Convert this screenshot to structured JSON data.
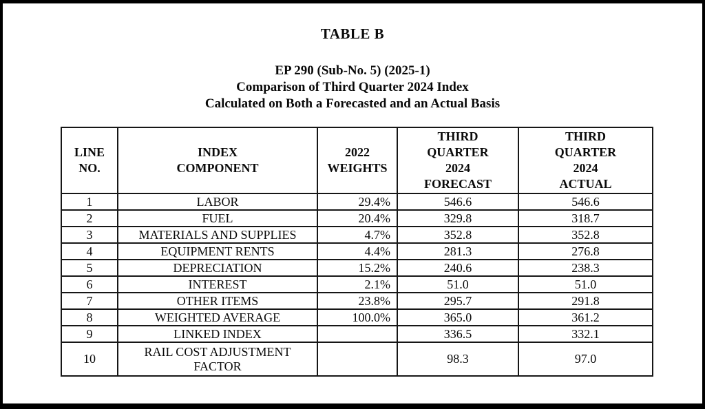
{
  "doc": {
    "title": "TABLE B",
    "subtitle_line1": "EP 290 (Sub-No. 5) (2025-1)",
    "subtitle_line2": "Comparison of Third Quarter 2024 Index",
    "subtitle_line3": "Calculated on Both a Forecasted and an Actual Basis"
  },
  "table": {
    "headers": {
      "line_no": "LINE\nNO.",
      "component": "INDEX\nCOMPONENT",
      "weights": "2022\nWEIGHTS",
      "forecast": "THIRD\nQUARTER\n2024\nFORECAST",
      "actual": "THIRD\nQUARTER\n2024\nACTUAL"
    },
    "rows": [
      {
        "line_no": "1",
        "component": "LABOR",
        "weight": "29.4%",
        "forecast": "546.6",
        "actual": "546.6"
      },
      {
        "line_no": "2",
        "component": "FUEL",
        "weight": "20.4%",
        "forecast": "329.8",
        "actual": "318.7"
      },
      {
        "line_no": "3",
        "component": "MATERIALS AND SUPPLIES",
        "weight": "4.7%",
        "forecast": "352.8",
        "actual": "352.8"
      },
      {
        "line_no": "4",
        "component": "EQUIPMENT RENTS",
        "weight": "4.4%",
        "forecast": "281.3",
        "actual": "276.8"
      },
      {
        "line_no": "5",
        "component": "DEPRECIATION",
        "weight": "15.2%",
        "forecast": "240.6",
        "actual": "238.3"
      },
      {
        "line_no": "6",
        "component": "INTEREST",
        "weight": "2.1%",
        "forecast": "51.0",
        "actual": "51.0"
      },
      {
        "line_no": "7",
        "component": "OTHER ITEMS",
        "weight": "23.8%",
        "forecast": "295.7",
        "actual": "291.8"
      },
      {
        "line_no": "8",
        "component": "WEIGHTED AVERAGE",
        "weight": "100.0%",
        "forecast": "365.0",
        "actual": "361.2"
      },
      {
        "line_no": "9",
        "component": "LINKED INDEX",
        "weight": "",
        "forecast": "336.5",
        "actual": "332.1"
      },
      {
        "line_no": "10",
        "component": "RAIL COST ADJUSTMENT\nFACTOR",
        "weight": "",
        "forecast": "98.3",
        "actual": "97.0"
      }
    ]
  },
  "colors": {
    "frame": "#000000",
    "page_background": "#ffffff",
    "text": "#0a0a0a",
    "table_border": "#161616"
  }
}
